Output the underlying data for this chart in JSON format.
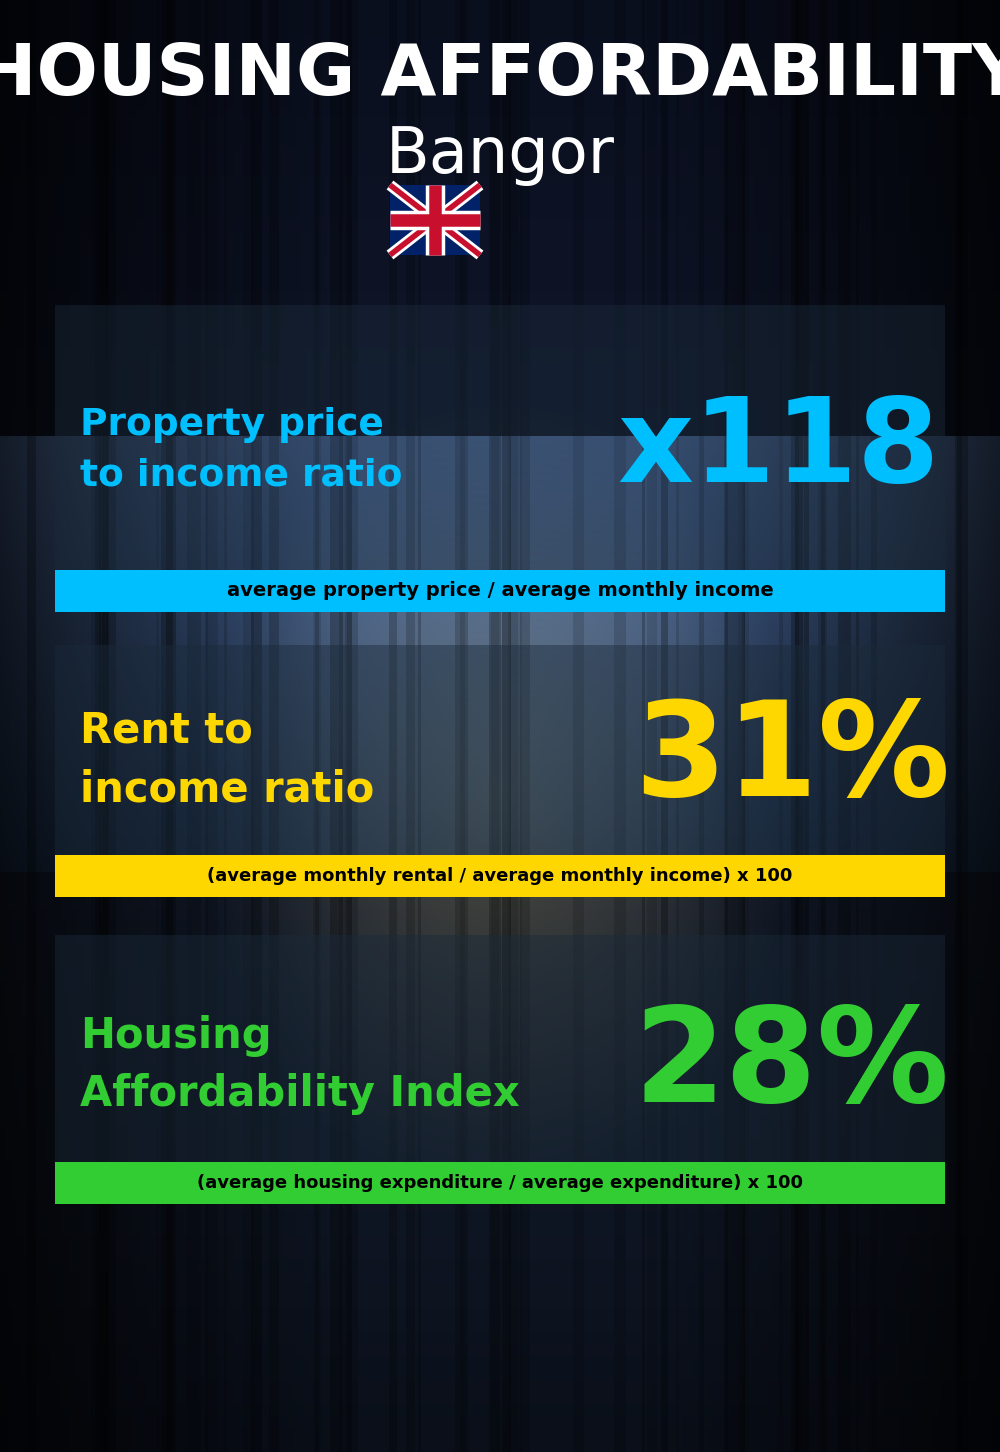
{
  "title_line1": "HOUSING AFFORDABILITY",
  "title_line2": "Bangor",
  "flag_emoji": "🇬🇧",
  "section1_label": "Property price\nto income ratio",
  "section1_value": "x118",
  "section1_label_color": "#00BFFF",
  "section1_value_color": "#00BFFF",
  "section1_banner_text": "average property price / average monthly income",
  "section1_banner_bg": "#00BFFF",
  "section2_label": "Rent to\nincome ratio",
  "section2_value": "31%",
  "section2_label_color": "#FFD700",
  "section2_value_color": "#FFD700",
  "section2_banner_text": "(average monthly rental / average monthly income) x 100",
  "section2_banner_bg": "#FFD700",
  "section3_label": "Housing\nAffordability Index",
  "section3_value": "28%",
  "section3_label_color": "#32CD32",
  "section3_value_color": "#32CD32",
  "section3_banner_text": "(average housing expenditure / average expenditure) x 100",
  "section3_banner_bg": "#32CD32",
  "bg_color": "#0a1020",
  "title_color": "#FFFFFF",
  "banner_text_color": "#000000"
}
